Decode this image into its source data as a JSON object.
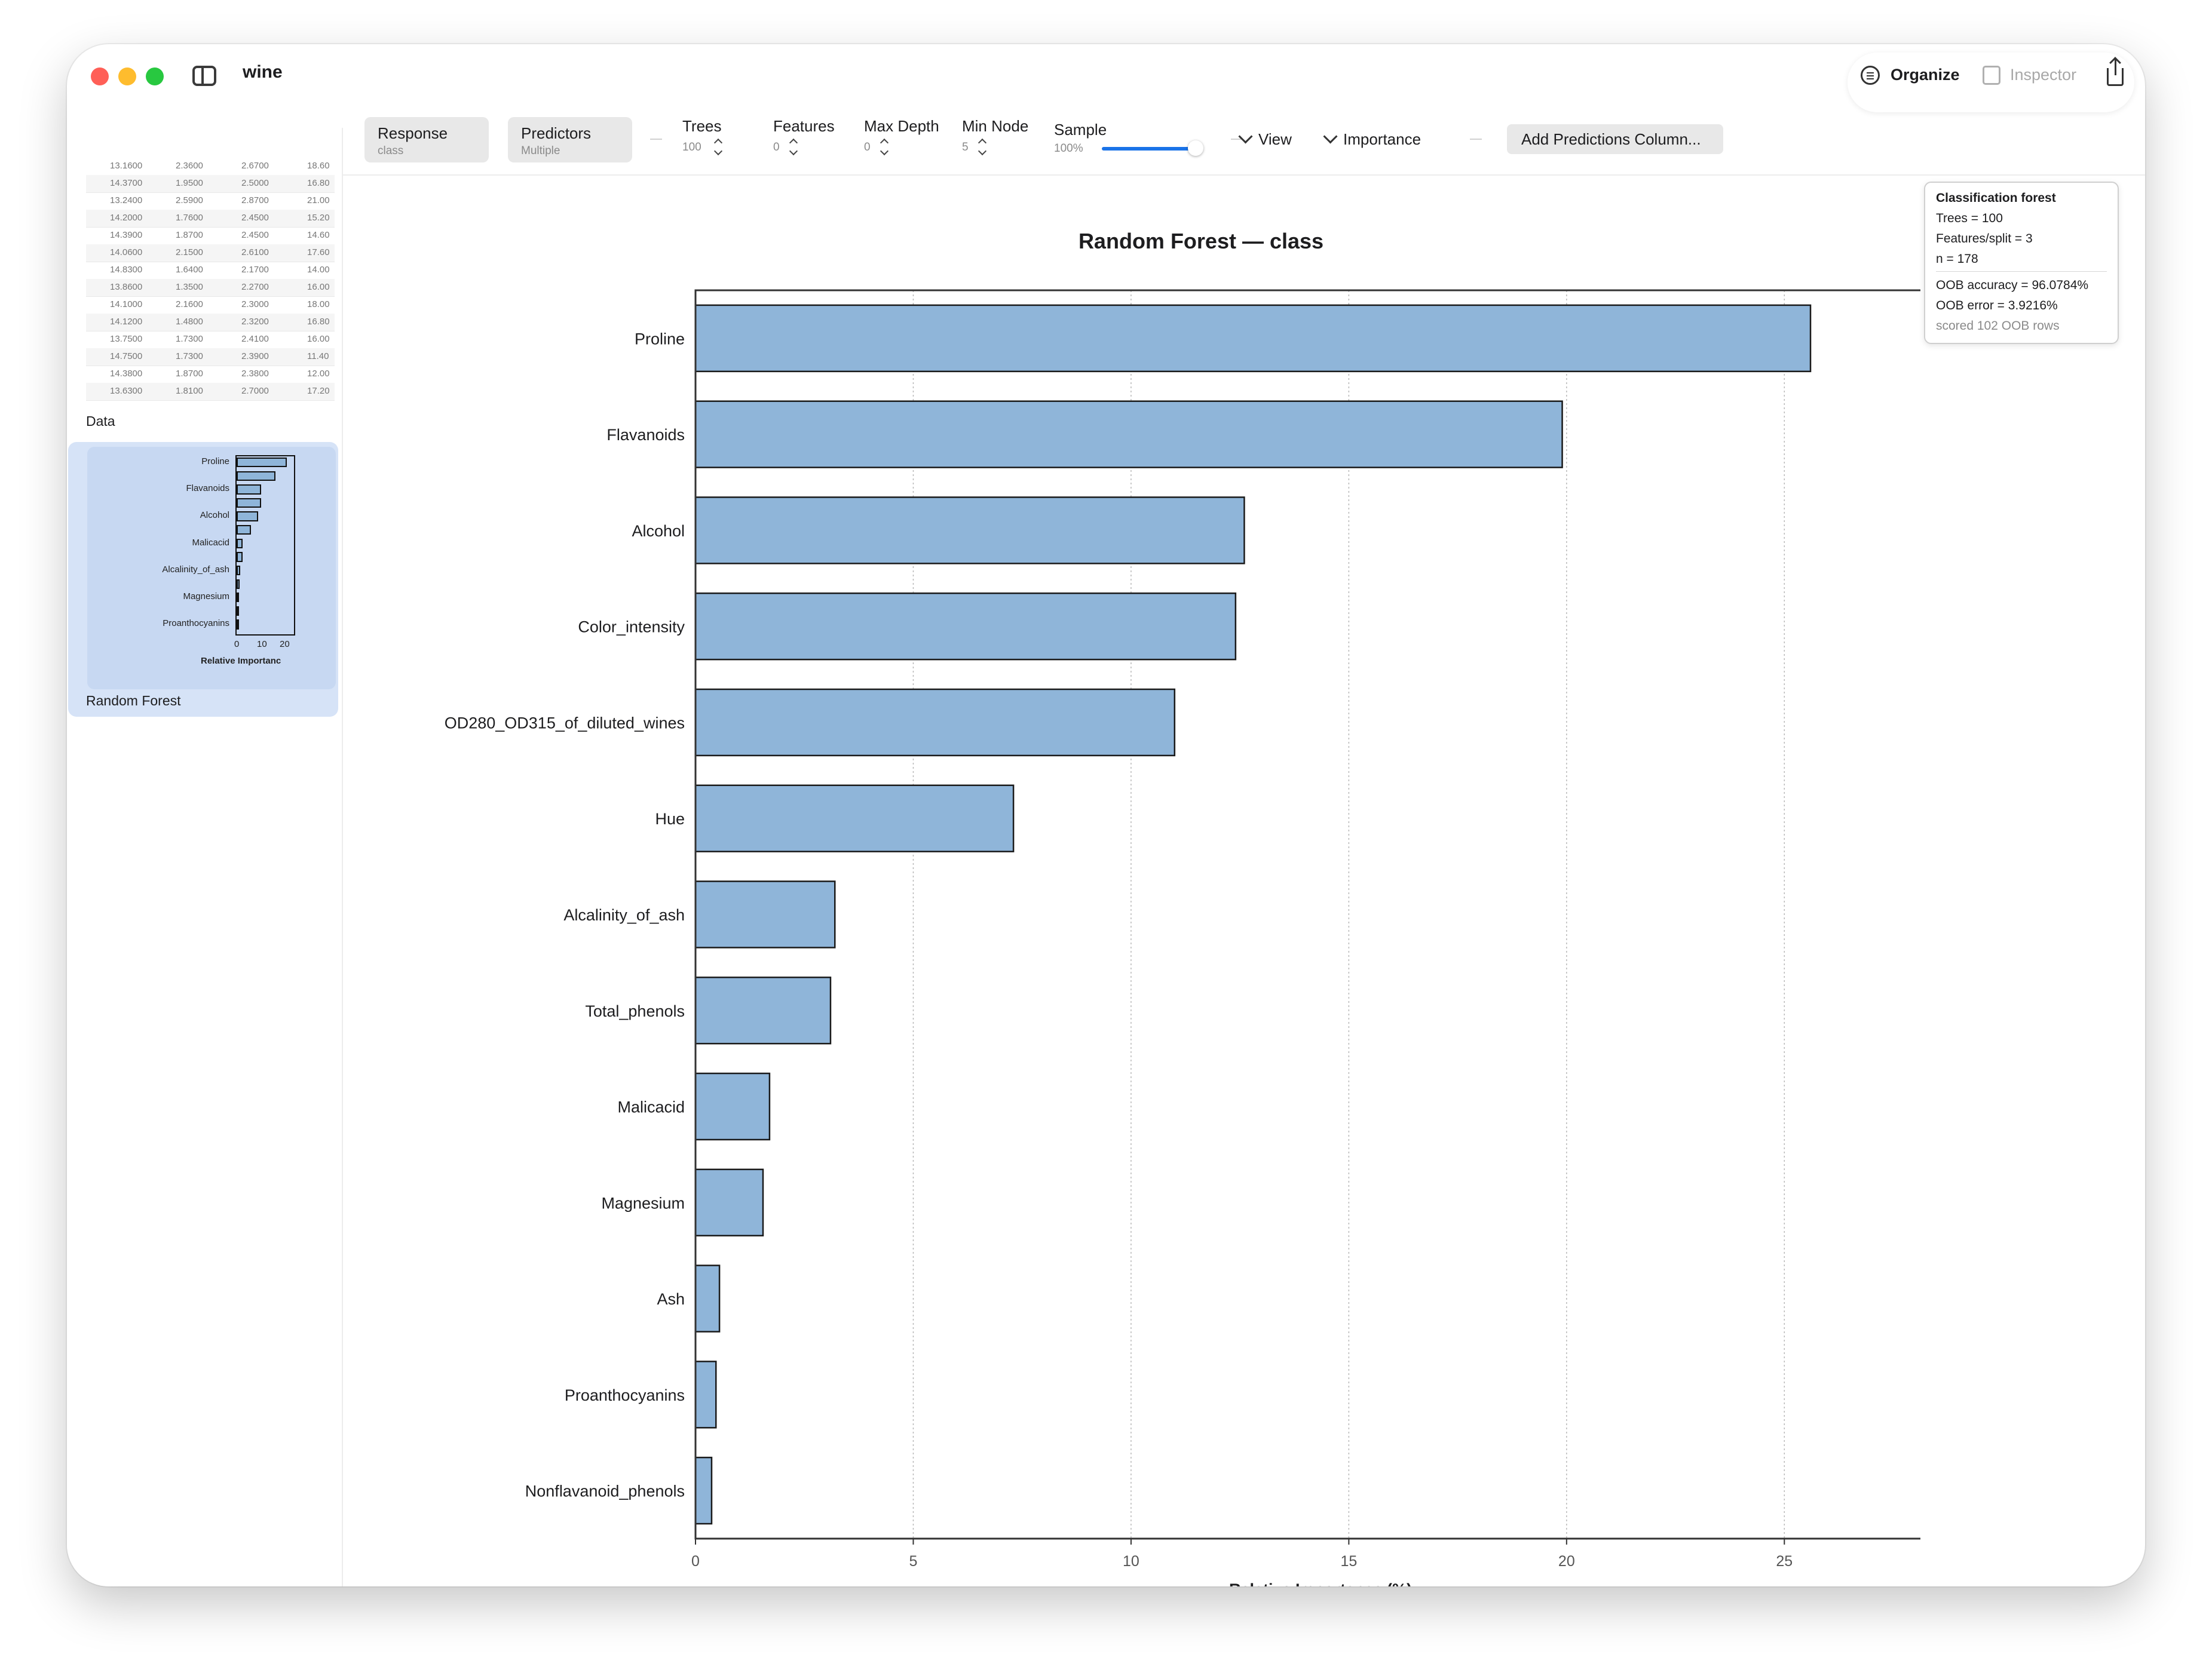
{
  "window": {
    "title": "wine",
    "toolbar_right": {
      "organize": "Organize",
      "inspector": "Inspector"
    }
  },
  "colors": {
    "accent": "#1a73e8",
    "bar_fill": "#8fb5d9",
    "close": "#ff5f57",
    "minimize": "#febc2e",
    "zoom": "#28c840"
  },
  "sidebar": {
    "data_label": "Data",
    "rf_label": "Random Forest",
    "data_rows": [
      [
        "13.1600",
        "2.3600",
        "2.6700",
        "18.60"
      ],
      [
        "14.3700",
        "1.9500",
        "2.5000",
        "16.80"
      ],
      [
        "13.2400",
        "2.5900",
        "2.8700",
        "21.00"
      ],
      [
        "14.2000",
        "1.7600",
        "2.4500",
        "15.20"
      ],
      [
        "14.3900",
        "1.8700",
        "2.4500",
        "14.60"
      ],
      [
        "14.0600",
        "2.1500",
        "2.6100",
        "17.60"
      ],
      [
        "14.8300",
        "1.6400",
        "2.1700",
        "14.00"
      ],
      [
        "13.8600",
        "1.3500",
        "2.2700",
        "16.00"
      ],
      [
        "14.1000",
        "2.1600",
        "2.3000",
        "18.00"
      ],
      [
        "14.1200",
        "1.4800",
        "2.3200",
        "16.80"
      ],
      [
        "13.7500",
        "1.7300",
        "2.4100",
        "16.00"
      ],
      [
        "14.7500",
        "1.7300",
        "2.3900",
        "11.40"
      ],
      [
        "14.3800",
        "1.8700",
        "2.3800",
        "12.00"
      ],
      [
        "13.6300",
        "1.8100",
        "2.7000",
        "17.20"
      ]
    ],
    "mini_chart": {
      "labels": [
        "Proline",
        "Flavanoids",
        "Alcohol",
        "Malicacid",
        "Alcalinity_of_ash",
        "Magnesium",
        "Proanthocyanins"
      ],
      "ticks": [
        "0",
        "10",
        "20"
      ],
      "xlabel": "Relative Importanc"
    },
    "add_icon": "+"
  },
  "toolbar": {
    "response": {
      "label": "Response",
      "value": "class"
    },
    "predictors": {
      "label": "Predictors",
      "value": "Multiple"
    },
    "trees": {
      "label": "Trees",
      "value": "100"
    },
    "features": {
      "label": "Features",
      "value": "0"
    },
    "max_depth": {
      "label": "Max Depth",
      "value": "0"
    },
    "min_node": {
      "label": "Min Node",
      "value": "5"
    },
    "sample": {
      "label": "Sample",
      "value": "100%",
      "fraction": 1.0
    },
    "view": "View",
    "importance": "Importance",
    "add_predictions": "Add Predictions Column..."
  },
  "info": {
    "title": "Classification forest",
    "trees": "Trees = 100",
    "features": "Features/split = 3",
    "n": "n = 178",
    "oob_accuracy": "OOB accuracy = 96.0784%",
    "oob_error": "OOB error = 3.9216%",
    "scored": "scored 102 OOB rows"
  },
  "chart_data": {
    "type": "bar",
    "orientation": "horizontal",
    "title": "Random Forest — class",
    "xlabel": "Relative Importance (%)",
    "ylabel": "",
    "xlim": [
      0,
      28.7
    ],
    "xticks": [
      0,
      5,
      10,
      15,
      20,
      25
    ],
    "grid": "vertical",
    "categories": [
      "Proline",
      "Flavanoids",
      "Alcohol",
      "Color_intensity",
      "OD280_OD315_of_diluted_wines",
      "Hue",
      "Alcalinity_of_ash",
      "Total_phenols",
      "Malicacid",
      "Magnesium",
      "Ash",
      "Proanthocyanins",
      "Nonflavanoid_phenols"
    ],
    "values": [
      25.6,
      19.9,
      12.6,
      12.4,
      11.0,
      7.3,
      3.2,
      3.1,
      1.7,
      1.55,
      0.55,
      0.47,
      0.37
    ]
  }
}
